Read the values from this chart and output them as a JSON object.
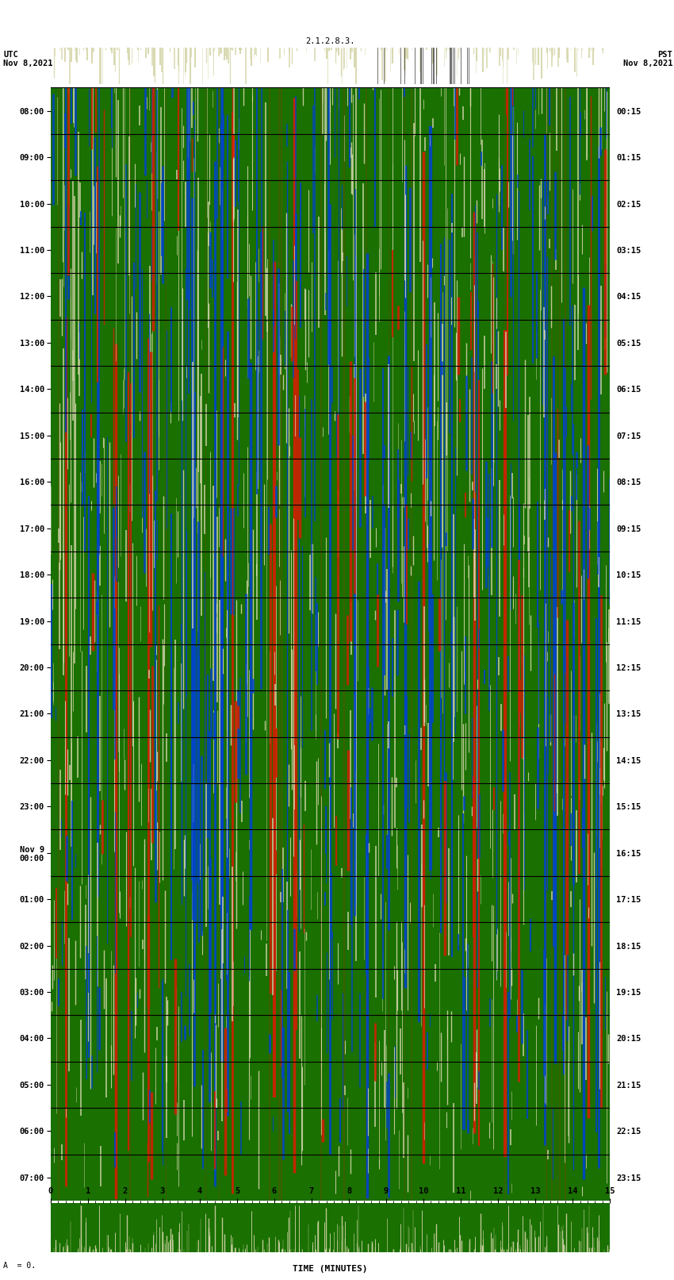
{
  "title_left": "UTC\nNov 8,2021",
  "title_right": "PST\nNov 8,2021",
  "title_top_center": "2.1.2.8.3.",
  "bg_color": "#1a7000",
  "white_line_color": "#d8d8b0",
  "blue_line_color": "#0044cc",
  "red_line_color": "#cc2200",
  "olive_line_color": "#4a5a00",
  "dark_green_line": "#003300",
  "left_labels_utc": [
    "08:00",
    "09:00",
    "10:00",
    "11:00",
    "12:00",
    "13:00",
    "14:00",
    "15:00",
    "16:00",
    "17:00",
    "18:00",
    "19:00",
    "20:00",
    "21:00",
    "22:00",
    "23:00",
    "Nov 9\n00:00",
    "01:00",
    "02:00",
    "03:00",
    "04:00",
    "05:00",
    "06:00",
    "07:00"
  ],
  "right_labels_pst": [
    "00:15",
    "01:15",
    "02:15",
    "03:15",
    "04:15",
    "05:15",
    "06:15",
    "07:15",
    "08:15",
    "09:15",
    "10:15",
    "11:15",
    "12:15",
    "13:15",
    "14:15",
    "15:15",
    "16:15",
    "17:15",
    "18:15",
    "19:15",
    "20:15",
    "21:15",
    "22:15",
    "23:15"
  ],
  "bottom_xlabel": "TIME (MINUTES)",
  "bottom_xticks": [
    0,
    1,
    2,
    3,
    4,
    5,
    6,
    7,
    8,
    9,
    10,
    11,
    12,
    13,
    14,
    15
  ],
  "n_rows": 24,
  "random_seed": 42
}
